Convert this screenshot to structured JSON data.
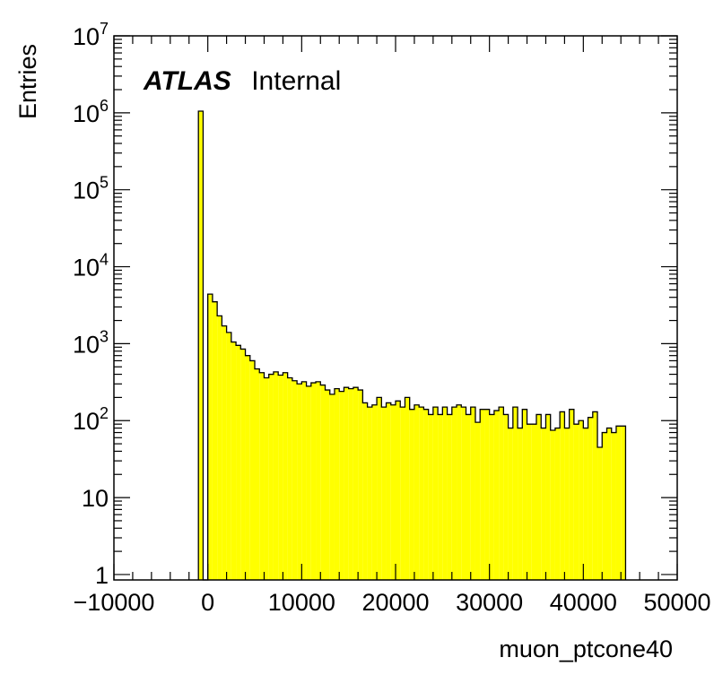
{
  "chart_data": {
    "type": "bar",
    "subtype": "histogram",
    "xlabel": "muon_ptcone40",
    "ylabel": "Entries",
    "xlim": [
      -10000,
      50000
    ],
    "ylim": [
      0.85,
      10000000
    ],
    "yscale": "log",
    "grid": false,
    "legend": "none",
    "fill_color": "#ffff00",
    "line_color": "#000000",
    "x_tick_labels": [
      "−10000",
      "0",
      "10000",
      "20000",
      "30000",
      "40000",
      "50000"
    ],
    "x_tick_values": [
      -10000,
      0,
      10000,
      20000,
      30000,
      40000,
      50000
    ],
    "y_ticks": [
      {
        "value": 1,
        "base": "1",
        "exp": ""
      },
      {
        "value": 10,
        "base": "10",
        "exp": ""
      },
      {
        "value": 100,
        "base": "10",
        "exp": "2"
      },
      {
        "value": 1000,
        "base": "10",
        "exp": "3"
      },
      {
        "value": 10000,
        "base": "10",
        "exp": "4"
      },
      {
        "value": 100000,
        "base": "10",
        "exp": "5"
      },
      {
        "value": 1000000,
        "base": "10",
        "exp": "6"
      },
      {
        "value": 10000000,
        "base": "10",
        "exp": "7"
      }
    ],
    "bin_edges_start": -1000,
    "bin_width": 500,
    "bin_values": [
      1050000,
      0.85,
      4400,
      3500,
      2300,
      1700,
      1400,
      1050,
      950,
      850,
      700,
      600,
      470,
      420,
      360,
      400,
      430,
      390,
      420,
      360,
      330,
      300,
      320,
      280,
      310,
      320,
      290,
      250,
      220,
      260,
      240,
      270,
      260,
      270,
      250,
      170,
      150,
      160,
      200,
      150,
      170,
      160,
      180,
      150,
      200,
      140,
      160,
      150,
      140,
      120,
      150,
      120,
      150,
      120,
      150,
      160,
      150,
      120,
      150,
      95,
      140,
      140,
      120,
      135,
      150,
      120,
      80,
      150,
      80,
      140,
      90,
      90,
      120,
      80,
      120,
      75,
      80,
      130,
      80,
      140,
      90,
      100,
      80,
      110,
      130,
      45,
      70,
      80,
      70,
      85,
      85
    ]
  },
  "annotation": {
    "experiment": "ATLAS",
    "status": "Internal"
  }
}
